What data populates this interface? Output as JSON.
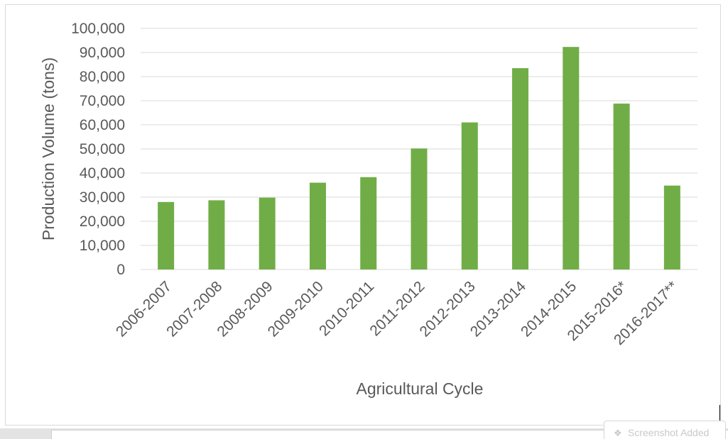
{
  "chart_data": {
    "type": "bar",
    "title": "",
    "xlabel": "Agricultural Cycle",
    "ylabel": "Production Volume (tons)",
    "categories": [
      "2006-2007",
      "2007-2008",
      "2008-2009",
      "2009-2010",
      "2010-2011",
      "2011-2012",
      "2012-2013",
      "2013-2014",
      "2014-2015",
      "2015-2016*",
      "2016-2017**"
    ],
    "values": [
      28000,
      28700,
      29800,
      36000,
      38300,
      50200,
      61000,
      83500,
      92300,
      68800,
      34800
    ],
    "ylim": [
      0,
      100000
    ],
    "yticks": [
      "0",
      "10,000",
      "20,000",
      "30,000",
      "40,000",
      "50,000",
      "60,000",
      "70,000",
      "80,000",
      "90,000",
      "100,000"
    ],
    "grid": true,
    "legend": "none",
    "bar_color": "#70ad47",
    "gridline_color": "#d9d9d9"
  },
  "overlay": {
    "toast_text": "Screenshot Added",
    "toast_icon": "screenshot-icon"
  }
}
